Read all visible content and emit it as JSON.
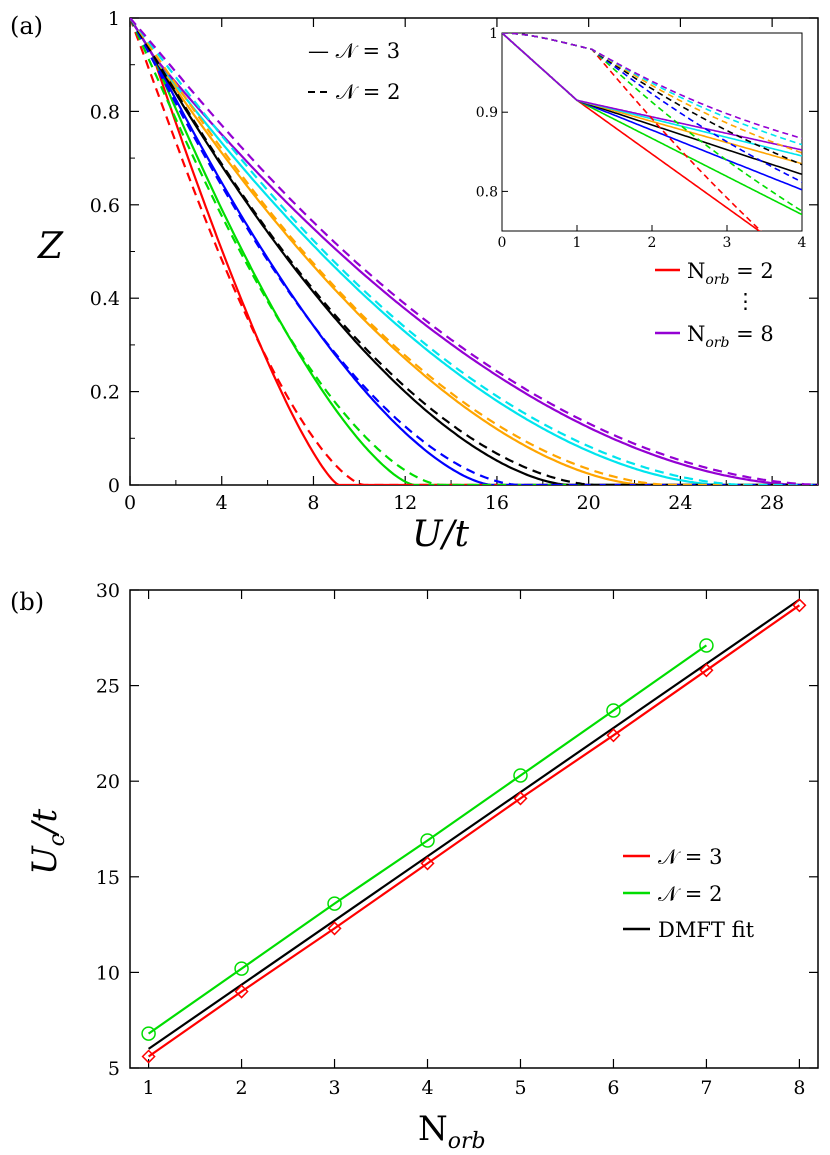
{
  "chart_data": [
    {
      "type": "line",
      "panel_label": "(a)",
      "xlabel": "U/t",
      "ylabel": "Z",
      "xlim": [
        0,
        30
      ],
      "ylim": [
        0,
        1
      ],
      "xticks": [
        "0",
        "4",
        "8",
        "12",
        "16",
        "20",
        "24",
        "28"
      ],
      "yticks": [
        "0",
        "0.2",
        "0.4",
        "0.6",
        "0.8",
        "1"
      ],
      "legend_styles": [
        {
          "label": "— 𝒩 = 3",
          "dash": "solid"
        },
        {
          "label": "𝒩 = 2",
          "dash": "dashed"
        }
      ],
      "legend_colors": [
        {
          "label": "N",
          "sub": "orb",
          "eq": " = 2",
          "color": "#ff0000"
        },
        {
          "label": "N",
          "sub": "orb",
          "eq": " = 8",
          "color": "#9400d3"
        }
      ],
      "legend_ellipsis": "⋮",
      "colors": [
        "#ff0000",
        "#00dd00",
        "#0000ff",
        "#000000",
        "#ffa500",
        "#00e5ee",
        "#9400d3"
      ],
      "series": [
        {
          "norb": 2,
          "color": "#ff0000",
          "style": "solid",
          "Uc": 9.1,
          "p": 1.3
        },
        {
          "norb": 3,
          "color": "#00dd00",
          "style": "solid",
          "Uc": 12.4,
          "p": 1.45
        },
        {
          "norb": 4,
          "color": "#0000ff",
          "style": "solid",
          "Uc": 15.8,
          "p": 1.55
        },
        {
          "norb": 5,
          "color": "#000000",
          "style": "solid",
          "Uc": 19.2,
          "p": 1.65
        },
        {
          "norb": 6,
          "color": "#ffa500",
          "style": "solid",
          "Uc": 22.6,
          "p": 1.72
        },
        {
          "norb": 7,
          "color": "#00e5ee",
          "style": "solid",
          "Uc": 26.0,
          "p": 1.78
        },
        {
          "norb": 8,
          "color": "#9400d3",
          "style": "solid",
          "Uc": 29.5,
          "p": 1.83
        },
        {
          "norb": 2,
          "color": "#ff0000",
          "style": "dashed",
          "Uc": 10.2,
          "p": 1.5
        },
        {
          "norb": 3,
          "color": "#00dd00",
          "style": "dashed",
          "Uc": 13.6,
          "p": 1.62
        },
        {
          "norb": 4,
          "color": "#0000ff",
          "style": "dashed",
          "Uc": 17.0,
          "p": 1.7
        },
        {
          "norb": 5,
          "color": "#000000",
          "style": "dashed",
          "Uc": 20.4,
          "p": 1.76
        },
        {
          "norb": 6,
          "color": "#ffa500",
          "style": "dashed",
          "Uc": 23.7,
          "p": 1.82
        },
        {
          "norb": 7,
          "color": "#00e5ee",
          "style": "dashed",
          "Uc": 27.1,
          "p": 1.86
        },
        {
          "norb": 8,
          "color": "#9400d3",
          "style": "dashed",
          "Uc": 30.5,
          "p": 1.9
        }
      ],
      "inset": {
        "xlim": [
          0,
          4
        ],
        "ylim": [
          0.75,
          1.0
        ],
        "xticks": [
          "0",
          "1",
          "2",
          "3",
          "4"
        ],
        "yticks": [
          "0.8",
          "0.9",
          "1"
        ],
        "legend_ellipsis": "⋮"
      }
    },
    {
      "type": "line",
      "panel_label": "(b)",
      "xlabel": "N",
      "xlabel_sub": "orb",
      "ylabel": "U",
      "ylabel_sub": "c",
      "ylabel_tail": "/t",
      "xlim": [
        0.8,
        8.2
      ],
      "ylim": [
        5,
        30
      ],
      "xticks": [
        "1",
        "2",
        "3",
        "4",
        "5",
        "6",
        "7",
        "8"
      ],
      "yticks": [
        "5",
        "10",
        "15",
        "20",
        "25",
        "30"
      ],
      "series": [
        {
          "name": "𝒩 = 3",
          "color": "#ff0000",
          "marker": "diamond",
          "x": [
            1,
            2,
            3,
            4,
            5,
            6,
            7,
            8
          ],
          "y": [
            5.6,
            9.0,
            12.3,
            15.7,
            19.1,
            22.4,
            25.8,
            29.2
          ]
        },
        {
          "name": "𝒩 = 2",
          "color": "#00dd00",
          "marker": "circle",
          "x": [
            1,
            2,
            3,
            4,
            5,
            6,
            7
          ],
          "y": [
            6.8,
            10.2,
            13.6,
            16.9,
            20.3,
            23.7,
            27.1
          ]
        },
        {
          "name": "DMFT fit",
          "color": "#000000",
          "marker": "none",
          "x": [
            1,
            8
          ],
          "y": [
            6.0,
            29.5
          ]
        }
      ]
    }
  ]
}
